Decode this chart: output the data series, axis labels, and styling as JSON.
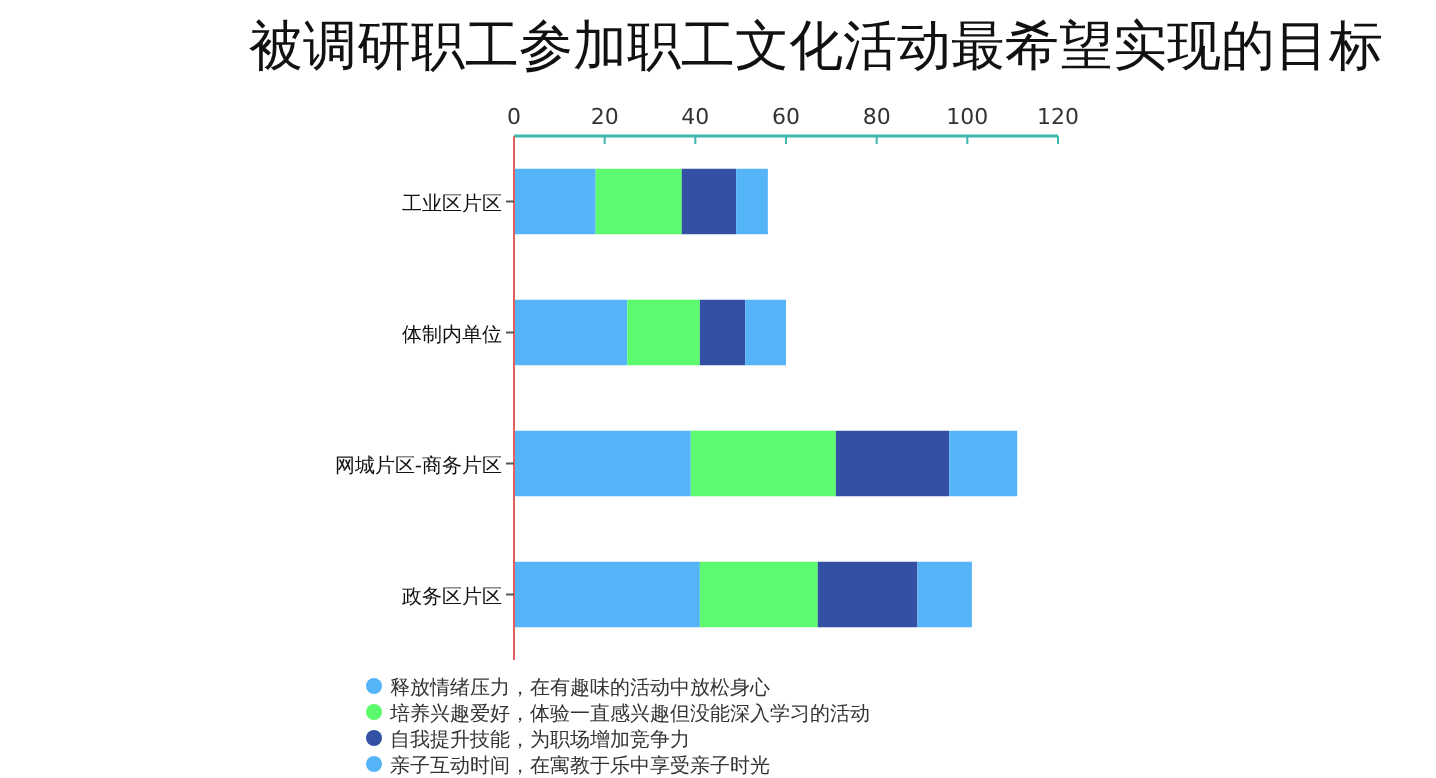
{
  "chart_data": {
    "type": "bar",
    "orientation": "horizontal",
    "stacked": true,
    "title": "被调研职工参加职工文化活动最希望实现的目标",
    "categories": [
      "工业区片区",
      "体制内单位",
      "网城片区-商务片区",
      "政务区片区"
    ],
    "series": [
      {
        "name": "释放情绪压力，在有趣味的活动中放松身心",
        "color": "#55b4f8",
        "values": [
          18,
          25,
          39,
          41
        ]
      },
      {
        "name": "培养兴趣爱好，体验一直感兴趣但没能深入学习的活动",
        "color": "#5cfa6e",
        "values": [
          19,
          16,
          32,
          26
        ]
      },
      {
        "name": "自我提升技能，为职场增加竞争力",
        "color": "#3350a3",
        "values": [
          12,
          10,
          25,
          22
        ]
      },
      {
        "name": "亲子互动时间，在寓教于乐中享受亲子时光",
        "color": "#55b4f8",
        "values": [
          7,
          9,
          15,
          12
        ]
      }
    ],
    "xlim": [
      0,
      120
    ],
    "xticks": [
      0,
      20,
      40,
      60,
      80,
      100,
      120
    ],
    "grid": false,
    "legend": "bottom left"
  }
}
